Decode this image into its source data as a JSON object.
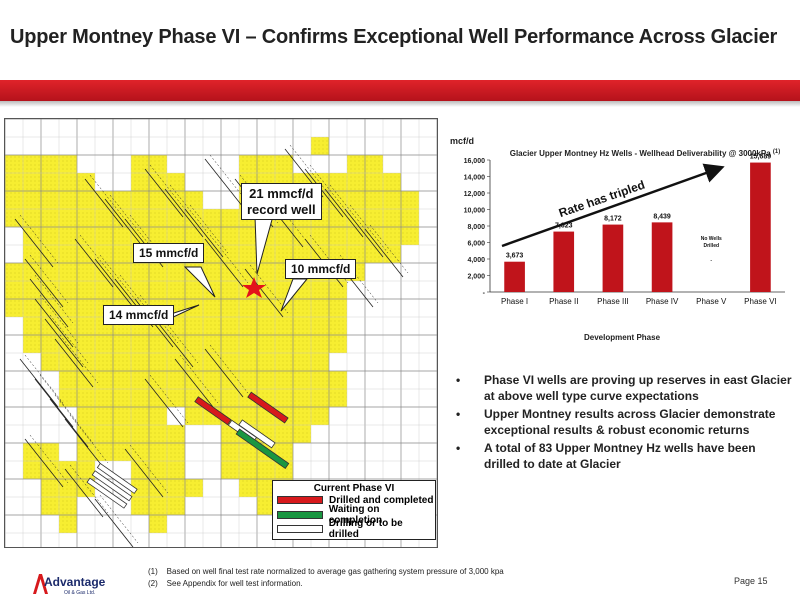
{
  "header": {
    "title": "Upper Montney Phase VI – Confirms Exceptional Well Performance Across Glacier"
  },
  "map": {
    "callouts": {
      "record": "21 mmcf/d\nrecord well",
      "left_upper": "15 mmcf/d",
      "right": "10 mmcf/d",
      "left_lower": "14 mmcf/d"
    },
    "legend": {
      "title": "Current Phase VI",
      "items": [
        {
          "label": "Drilled and completed",
          "color": "#d7191c"
        },
        {
          "label": "Waiting on completion",
          "color": "#1a9641"
        },
        {
          "label": "Drilling or to be drilled",
          "color": "#ffffff"
        }
      ]
    },
    "colors": {
      "lease": "#f7ee31",
      "grid": "#999999"
    }
  },
  "chart_data": {
    "type": "bar",
    "title": "Glacier Upper Montney Hz Wells - Wellhead Deliverability @ 3000kPa",
    "title_superscript": "(1)",
    "ylabel": "mcf/d",
    "xlabel": "Development Phase",
    "categories": [
      "Phase I",
      "Phase II",
      "Phase III",
      "Phase IV",
      "Phase V",
      "Phase VI"
    ],
    "values": [
      3673,
      7323,
      8172,
      8439,
      null,
      15689
    ],
    "data_labels": [
      "3,673",
      "7,323",
      "8,172",
      "8,439",
      "",
      "15,689"
    ],
    "yticks": [
      "16,000",
      "14,000",
      "12,000",
      "10,000",
      "8,000",
      "6,000",
      "4,000",
      "2,000",
      "-"
    ],
    "ylim": [
      0,
      16000
    ],
    "annotations": {
      "no_wells": "No Wells\nDrilled",
      "no_wells_dash": "-",
      "trend": "Rate has tripled"
    },
    "bar_color": "#c0141b"
  },
  "bullets": [
    "Phase VI wells are proving up reserves in east Glacier at above well type curve expectations",
    "Upper Montney results across Glacier demonstrate exceptional results & robust economic returns",
    "A total of 83 Upper Montney Hz wells have been drilled to date at Glacier"
  ],
  "footnotes": [
    "(1)    Based on well final test rate normalized to average gas gathering system pressure of 3,000 kpa",
    "(2)    See Appendix for well test information."
  ],
  "logo": {
    "name": "Advantage",
    "sub": "Oil & Gas Ltd."
  },
  "page": "Page 15"
}
